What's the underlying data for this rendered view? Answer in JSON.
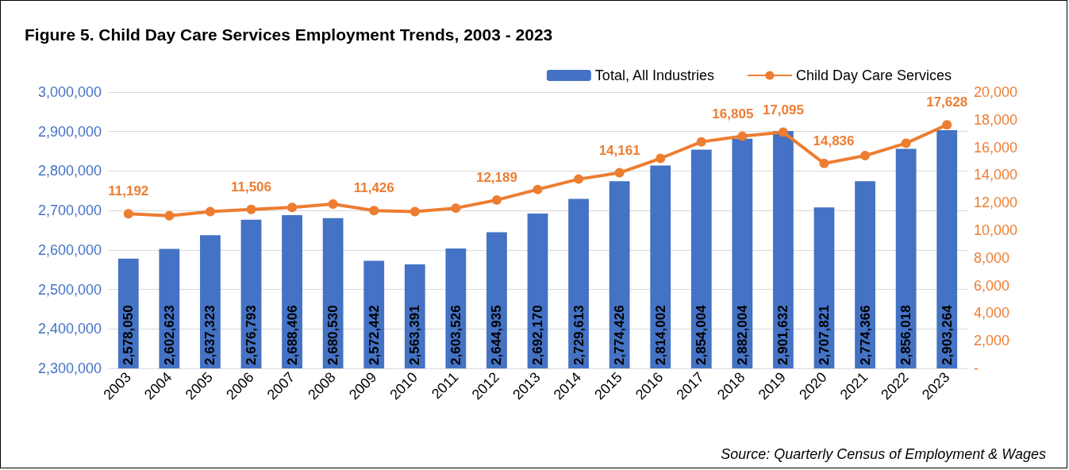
{
  "chart_data": {
    "type": "bar",
    "title": "Figure 5. Child Day Care Services Employment Trends, 2003 - 2023",
    "categories": [
      "2003",
      "2004",
      "2005",
      "2006",
      "2007",
      "2008",
      "2009",
      "2010",
      "2011",
      "2012",
      "2013",
      "2014",
      "2015",
      "2016",
      "2017",
      "2018",
      "2019",
      "2020",
      "2021",
      "2022",
      "2023"
    ],
    "series": [
      {
        "name": "Total, All Industries",
        "color": "#4472c4",
        "values": [
          2578050,
          2602623,
          2637323,
          2676793,
          2688406,
          2680530,
          2572442,
          2563391,
          2603526,
          2644935,
          2692170,
          2729613,
          2774426,
          2814002,
          2854004,
          2882004,
          2901632,
          2707821,
          2774366,
          2856018,
          2903264
        ],
        "value_labels": [
          "2,578,050",
          "2,602,623",
          "2,637,323",
          "2,676,793",
          "2,688,406",
          "2,680,530",
          "2,572,442",
          "2,563,391",
          "2,603,526",
          "2,644,935",
          "2,692,170",
          "2,729,613",
          "2,774,426",
          "2,814,002",
          "2,854,004",
          "2,882,004",
          "2,901,632",
          "2,707,821",
          "2,774,366",
          "2,856,018",
          "2,903,264"
        ]
      },
      {
        "name": "Child Day Care Services",
        "type": "line",
        "axis": "y2",
        "color": "#ed7d31",
        "values": [
          11192,
          11050,
          11350,
          11506,
          11650,
          11900,
          11426,
          11350,
          11600,
          12189,
          12950,
          13700,
          14161,
          15200,
          16400,
          16805,
          17095,
          14836,
          15400,
          16300,
          17628
        ],
        "value_labels": [
          "11,192",
          null,
          null,
          "11,506",
          null,
          null,
          "11,426",
          null,
          null,
          "12,189",
          null,
          null,
          "14,161",
          null,
          null,
          "16,805",
          "17,095",
          "14,836",
          null,
          null,
          "17,628"
        ]
      }
    ],
    "ylim": [
      2300000,
      3000000
    ],
    "yticks": [
      {
        "value": 2300000,
        "label": "2,300,000"
      },
      {
        "value": 2400000,
        "label": "2,400,000"
      },
      {
        "value": 2500000,
        "label": "2,500,000"
      },
      {
        "value": 2600000,
        "label": "2,600,000"
      },
      {
        "value": 2700000,
        "label": "2,700,000"
      },
      {
        "value": 2800000,
        "label": "2,800,000"
      },
      {
        "value": 2900000,
        "label": "2,900,000"
      },
      {
        "value": 3000000,
        "label": "3,000,000"
      }
    ],
    "y2lim": [
      0,
      20000
    ],
    "y2ticks": [
      {
        "value": 0,
        "label": "-"
      },
      {
        "value": 2000,
        "label": "2,000"
      },
      {
        "value": 4000,
        "label": "4,000"
      },
      {
        "value": 6000,
        "label": "6,000"
      },
      {
        "value": 8000,
        "label": "8,000"
      },
      {
        "value": 10000,
        "label": "10,000"
      },
      {
        "value": 12000,
        "label": "12,000"
      },
      {
        "value": 14000,
        "label": "14,000"
      },
      {
        "value": 16000,
        "label": "16,000"
      },
      {
        "value": 18000,
        "label": "18,000"
      },
      {
        "value": 20000,
        "label": "20,000"
      }
    ],
    "grid": "y",
    "legend": "top right",
    "marker": "circle",
    "line_style": "solid",
    "annotations": [
      "Source: Quarterly Census of Employment & Wages"
    ]
  }
}
